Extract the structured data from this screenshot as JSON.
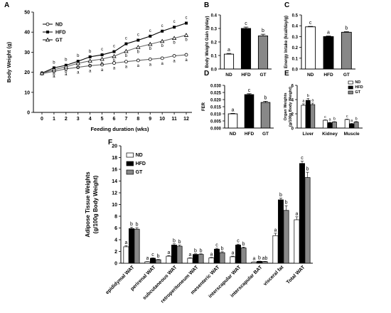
{
  "chart_data": [
    {
      "type": "line",
      "panel": "A",
      "xlabel": "Feeding duration  (wks)",
      "ylabel": "Body Weight (g)",
      "x": [
        0,
        1,
        2,
        3,
        4,
        5,
        6,
        7,
        8,
        9,
        10,
        11,
        12
      ],
      "ylim": [
        0,
        50
      ],
      "yticks": [
        0,
        10,
        20,
        30,
        40,
        50
      ],
      "series": [
        {
          "name": "ND",
          "marker": "open-circle",
          "values": [
            19.3,
            20.5,
            21.7,
            22.5,
            23.3,
            23.8,
            24.6,
            25.3,
            25.9,
            26.5,
            27.0,
            28.2,
            28.7
          ],
          "labels": [
            "",
            "a",
            "a",
            "a",
            "a",
            "a",
            "a",
            "a",
            "a",
            "a",
            "a",
            "a",
            "a"
          ]
        },
        {
          "name": "HFD",
          "marker": "filled-square",
          "values": [
            19.6,
            22.2,
            23.5,
            25.5,
            27.7,
            28.7,
            30.3,
            34.2,
            36.0,
            38.0,
            40.5,
            42.5,
            44.5
          ],
          "labels": [
            "",
            "b",
            "b",
            "b",
            "b",
            "c",
            "c",
            "c",
            "c",
            "c",
            "c",
            "c",
            "c"
          ]
        },
        {
          "name": "GT",
          "marker": "open-triangle",
          "values": [
            19.5,
            21.3,
            22.7,
            24.5,
            25.7,
            26.6,
            28.0,
            30.5,
            32.5,
            34.0,
            35.5,
            37.0,
            38.5
          ],
          "labels": [
            "",
            "b",
            "b",
            "b",
            "b",
            "b",
            "b",
            "b",
            "b",
            "b",
            "b",
            "b",
            "b"
          ]
        }
      ],
      "legend": [
        "ND",
        "HFD",
        "GT"
      ],
      "legend_position": "top-left"
    },
    {
      "type": "bar",
      "panel": "B",
      "categories": [
        "ND",
        "HFD",
        "GT"
      ],
      "values": [
        0.11,
        0.3,
        0.245
      ],
      "errors": [
        0.005,
        0.01,
        0.012
      ],
      "labels": [
        "a",
        "c",
        "b"
      ],
      "ylabel": "Body Weight Gain (g/day)",
      "ylim": [
        0,
        0.4
      ],
      "yticks": [
        0.0,
        0.1,
        0.2,
        0.3,
        0.4
      ],
      "ytick_labels": [
        "0.0",
        "0.1",
        "0.2",
        "0.3",
        "0.4"
      ]
    },
    {
      "type": "bar",
      "panel": "C",
      "categories": [
        "ND",
        "HFD",
        "GT"
      ],
      "values": [
        0.39,
        0.3,
        0.34
      ],
      "errors": [
        0.004,
        0.005,
        0.005
      ],
      "labels": [
        "c",
        "a",
        "b"
      ],
      "ylabel": "Energy Intake (kcal/day/g)",
      "ylim": [
        0,
        0.5
      ],
      "yticks": [
        0.0,
        0.1,
        0.2,
        0.3,
        0.4,
        0.5
      ],
      "ytick_labels": [
        "0.0",
        "0.1",
        "0.2",
        "0.3",
        "0.4",
        "0.5"
      ]
    },
    {
      "type": "bar",
      "panel": "D",
      "categories": [
        "ND",
        "HFD",
        "GT"
      ],
      "values": [
        0.01,
        0.0235,
        0.018
      ],
      "errors": [
        0.0003,
        0.0006,
        0.0008
      ],
      "labels": [
        "a",
        "c",
        "b"
      ],
      "ylabel": "FER",
      "ylim": [
        0,
        0.03
      ],
      "yticks": [
        0.0,
        0.005,
        0.01,
        0.015,
        0.02,
        0.025,
        0.03
      ],
      "ytick_labels": [
        "0.000",
        "0.005",
        "0.010",
        "0.015",
        "0.020",
        "0.025",
        "0.030"
      ]
    },
    {
      "type": "bar",
      "panel": "E",
      "categories": [
        "Liver",
        "Kidney",
        "Muscle"
      ],
      "series": [
        {
          "name": "ND",
          "values": [
            3.2,
            1.1,
            1.2
          ],
          "errors": [
            0.2,
            0.05,
            0.06
          ],
          "labels": [
            "a",
            "c",
            "c"
          ]
        },
        {
          "name": "HFD",
          "values": [
            3.9,
            0.75,
            0.6
          ],
          "errors": [
            0.25,
            0.05,
            0.05
          ],
          "labels": [
            "b",
            "a",
            "a"
          ]
        },
        {
          "name": "GT",
          "values": [
            3.3,
            0.85,
            0.85
          ],
          "errors": [
            0.2,
            0.05,
            0.06
          ],
          "labels": [
            "a",
            "b",
            "b"
          ]
        }
      ],
      "ylabel": "Organ Weights",
      "ylabel2": "(g/100g Body Weight)",
      "ylim": [
        0,
        6
      ],
      "yticks": [
        0,
        2,
        4,
        6
      ],
      "ytick_labels": [
        "0",
        "2",
        "4",
        "6"
      ],
      "legend": [
        "ND",
        "HFD",
        "GT"
      ],
      "legend_position": "top-right"
    },
    {
      "type": "bar",
      "panel": "F",
      "categories": [
        "epididymal WAT",
        "perirenal WAT",
        "subcutaneous WAT",
        "retroperitoneum WAT",
        "mesenteric WAT",
        "interscapular WAT",
        "interscapular BAT",
        "visceral fat",
        "Total WAT"
      ],
      "series": [
        {
          "name": "ND",
          "values": [
            2.8,
            0.25,
            1.2,
            0.85,
            0.9,
            1.1,
            0.2,
            4.7,
            7.4
          ],
          "errors": [
            0.2,
            0.04,
            0.1,
            0.08,
            0.08,
            0.1,
            0.03,
            0.4,
            0.5
          ],
          "labels": [
            "a",
            "a",
            "a",
            "a",
            "a",
            "a",
            "a",
            "a",
            "a"
          ]
        },
        {
          "name": "HFD",
          "values": [
            5.9,
            0.85,
            3.1,
            1.5,
            2.4,
            3.1,
            0.32,
            10.8,
            17.0
          ],
          "errors": [
            0.25,
            0.06,
            0.2,
            0.1,
            0.15,
            0.15,
            0.04,
            0.3,
            0.4
          ],
          "labels": [
            "b",
            "c",
            "b",
            "b",
            "c",
            "c",
            "b",
            "b",
            "c"
          ]
        },
        {
          "name": "GT",
          "values": [
            5.8,
            0.6,
            2.9,
            1.5,
            1.8,
            2.6,
            0.28,
            9.0,
            14.6
          ],
          "errors": [
            0.25,
            0.06,
            0.2,
            0.1,
            0.15,
            0.15,
            0.04,
            0.8,
            0.9
          ],
          "labels": [
            "b",
            "b",
            "b",
            "b",
            "b",
            "b",
            "ab",
            "b",
            "b"
          ]
        }
      ],
      "ylabel": "Adipose Tissue Weights",
      "ylabel2": "(g/100g Body Weight)",
      "ylim": [
        0,
        20
      ],
      "yticks": [
        0,
        2,
        4,
        6,
        8,
        10,
        12,
        14,
        16,
        18,
        20
      ],
      "ytick_labels": [
        "0",
        "2",
        "4",
        "6",
        "8",
        "10",
        "12",
        "14",
        "16",
        "18",
        "20"
      ],
      "legend": [
        "ND",
        "HFD",
        "GT"
      ],
      "legend_position": "top-left"
    }
  ],
  "colors": {
    "ND": "#ffffff",
    "HFD": "#000000",
    "GT": "#888888"
  }
}
